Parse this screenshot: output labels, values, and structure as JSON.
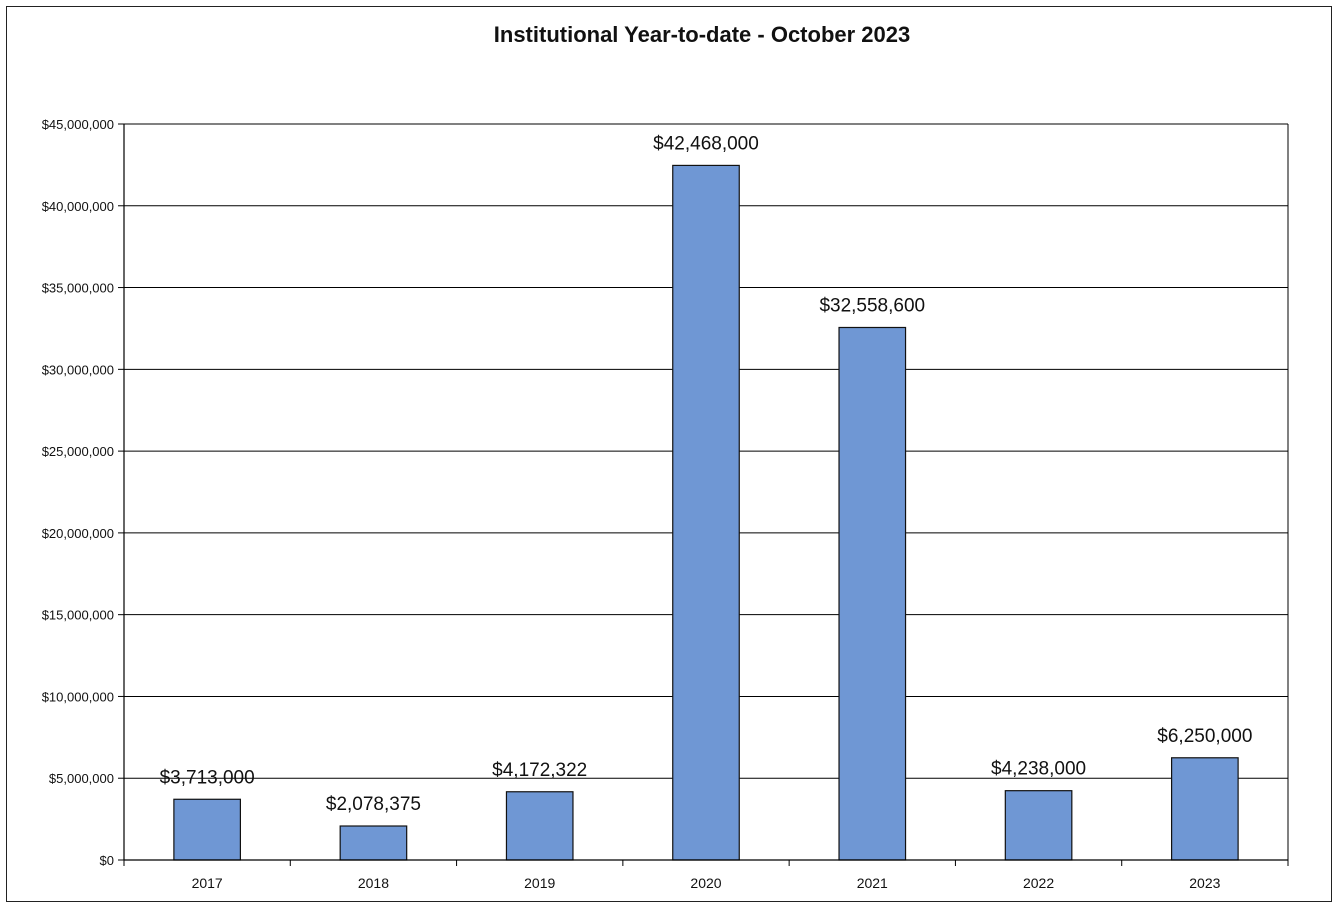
{
  "chart_data": {
    "type": "bar",
    "title": "Institutional Year-to-date - October 2023",
    "xlabel": "",
    "ylabel": "",
    "categories": [
      "2017",
      "2018",
      "2019",
      "2020",
      "2021",
      "2022",
      "2023"
    ],
    "values": [
      3713000,
      2078375,
      4172322,
      42468000,
      32558600,
      4238000,
      6250000
    ],
    "data_labels": [
      "$3,713,000",
      "$2,078,375",
      "$4,172,322",
      "$42,468,000",
      "$32,558,600",
      "$4,238,000",
      "$6,250,000"
    ],
    "ylim": [
      0,
      45000000
    ],
    "yticks": [
      0,
      5000000,
      10000000,
      15000000,
      20000000,
      25000000,
      30000000,
      35000000,
      40000000,
      45000000
    ],
    "ytick_labels": [
      "$0",
      "$5,000,000",
      "$10,000,000",
      "$15,000,000",
      "$20,000,000",
      "$25,000,000",
      "$30,000,000",
      "$35,000,000",
      "$40,000,000",
      "$45,000,000"
    ],
    "grid": true,
    "legend": "none",
    "bar_color": "#6f97d4",
    "bar_edge_color": "#111111",
    "gridline_color": "#000000"
  }
}
